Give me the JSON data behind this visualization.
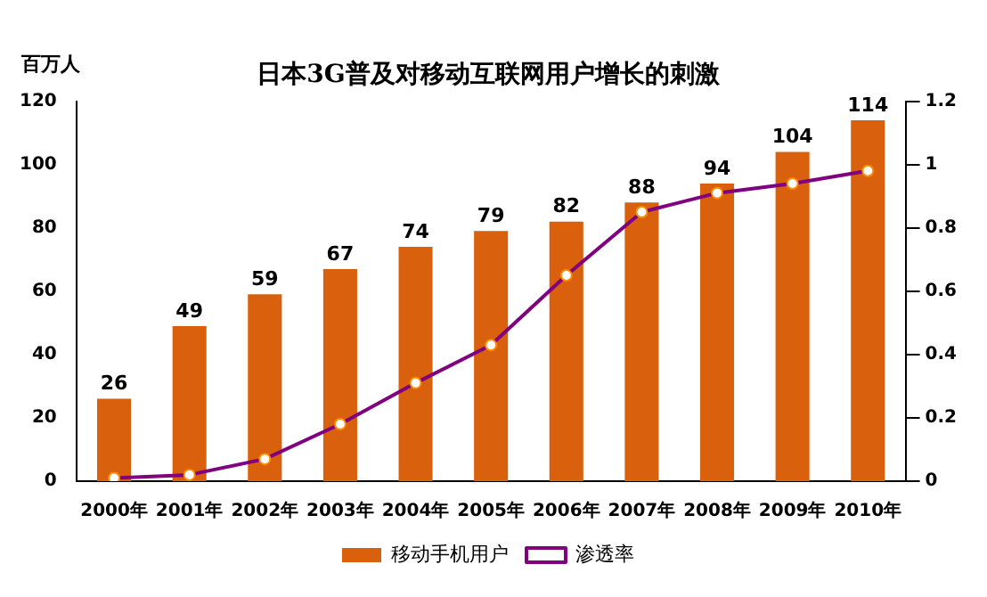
{
  "chart_data": {
    "type": "bar",
    "title": "日本3G普及对移动互联网用户增长的刺激",
    "ylabel": "百万人",
    "categories": [
      "2000年",
      "2001年",
      "2002年",
      "2003年",
      "2004年",
      "2005年",
      "2006年",
      "2007年",
      "2008年",
      "2009年",
      "2010年"
    ],
    "series": [
      {
        "name": "移动手机用户",
        "color": "#d9600c",
        "values": [
          26,
          49,
          59,
          67,
          74,
          79,
          82,
          88,
          94,
          104,
          114
        ],
        "value_labels": [
          "26",
          "49",
          "59",
          "67",
          "74",
          "79",
          "82",
          "88",
          "94",
          "104",
          "114"
        ]
      },
      {
        "name": "渗透率",
        "type": "line",
        "axis": "y2",
        "color": "#800080",
        "marker": "circle",
        "values": [
          0.01,
          0.02,
          0.07,
          0.18,
          0.31,
          0.43,
          0.65,
          0.85,
          0.91,
          0.94,
          0.98
        ]
      }
    ],
    "ylim": [
      0,
      120
    ],
    "yticks": [
      0,
      20,
      40,
      60,
      80,
      100,
      120
    ],
    "y2lim": [
      0,
      1.2
    ],
    "y2ticks": [
      0,
      0.2,
      0.4,
      0.6,
      0.8,
      1,
      1.2
    ],
    "grid": false,
    "legend": "bottom"
  }
}
